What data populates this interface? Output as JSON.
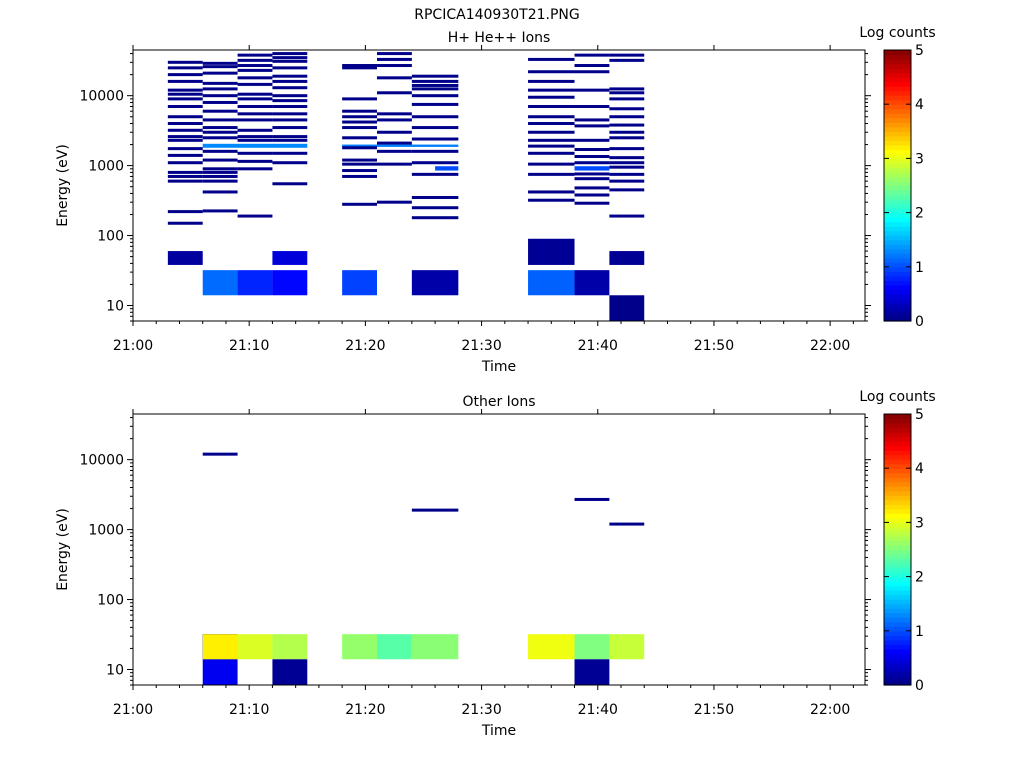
{
  "figure_title": "RPCICA140930T21.PNG",
  "chart_data": [
    {
      "type": "heatmap",
      "title": "H+ He++ Ions",
      "xlabel": "Time",
      "ylabel": "Energy (eV)",
      "y_scale": "log",
      "ylim": [
        6,
        45000
      ],
      "xlim": [
        "21:00",
        "22:03"
      ],
      "x_ticks": [
        "21:00",
        "21:10",
        "21:20",
        "21:30",
        "21:40",
        "21:50",
        "22:00"
      ],
      "y_ticks": [
        "10",
        "100",
        "1000",
        "10000"
      ],
      "colorbar": {
        "label": "Log counts",
        "range": [
          0,
          5
        ],
        "ticks": [
          "0",
          "1",
          "2",
          "3",
          "4",
          "5"
        ],
        "colormap": "jet"
      },
      "cells": [
        {
          "t0": "21:03",
          "t1": "21:06",
          "e0": 38,
          "e1": 60,
          "v": 0.15
        },
        {
          "t0": "21:06",
          "t1": "21:09",
          "e0": 14,
          "e1": 32,
          "v": 1.15
        },
        {
          "t0": "21:09",
          "t1": "21:12",
          "e0": 14,
          "e1": 32,
          "v": 0.8
        },
        {
          "t0": "21:12",
          "t1": "21:15",
          "e0": 14,
          "e1": 32,
          "v": 0.65
        },
        {
          "t0": "21:12",
          "t1": "21:15",
          "e0": 38,
          "e1": 60,
          "v": 0.45
        },
        {
          "t0": "21:18",
          "t1": "21:21",
          "e0": 14,
          "e1": 32,
          "v": 0.95
        },
        {
          "t0": "21:24",
          "t1": "21:28",
          "e0": 14,
          "e1": 32,
          "v": 0.2
        },
        {
          "t0": "21:34",
          "t1": "21:38",
          "e0": 38,
          "e1": 90,
          "v": 0.1
        },
        {
          "t0": "21:34",
          "t1": "21:38",
          "e0": 14,
          "e1": 32,
          "v": 1.1
        },
        {
          "t0": "21:38",
          "t1": "21:41",
          "e0": 14,
          "e1": 32,
          "v": 0.2
        },
        {
          "t0": "21:41",
          "t1": "21:44",
          "e0": 38,
          "e1": 60,
          "v": 0.1
        },
        {
          "t0": "21:41",
          "t1": "21:44",
          "e0": 6,
          "e1": 14,
          "v": 0.05
        },
        {
          "t0": "21:06",
          "t1": "21:15",
          "e0": 1800,
          "e1": 2050,
          "v": 1.3
        },
        {
          "t0": "21:18",
          "t1": "21:28",
          "e0": 1850,
          "e1": 2000,
          "v": 1.25
        },
        {
          "t0": "21:26",
          "t1": "21:28",
          "e0": 850,
          "e1": 980,
          "v": 1.0
        },
        {
          "t0": "21:38",
          "t1": "21:41",
          "e0": 850,
          "e1": 980,
          "v": 1.0
        }
      ],
      "line_groups": [
        {
          "t0": "21:03",
          "t1": "21:06",
          "energies": [
            30000,
            25000,
            20000,
            16000,
            12000,
            10500,
            9000,
            7000,
            5000,
            4000,
            3200,
            2600,
            2300,
            1750,
            1400,
            1100,
            800,
            700,
            600,
            220,
            150
          ]
        },
        {
          "t0": "21:06",
          "t1": "21:09",
          "energies": [
            29000,
            26000,
            21000,
            15000,
            12500,
            10000,
            8000,
            6000,
            4500,
            3500,
            3000,
            2500,
            1600,
            1200,
            900,
            800,
            700,
            600,
            420,
            225
          ]
        },
        {
          "t0": "21:09",
          "t1": "21:12",
          "energies": [
            38000,
            32000,
            27000,
            23000,
            18000,
            14500,
            10500,
            9000,
            7000,
            5500,
            4500,
            3200,
            2600,
            2300,
            1500,
            1150,
            900,
            190
          ]
        },
        {
          "t0": "21:12",
          "t1": "21:15",
          "energies": [
            40000,
            35000,
            31000,
            25000,
            19000,
            16000,
            13000,
            10000,
            8500,
            7000,
            5500,
            4500,
            3500,
            2600,
            2300,
            1500,
            1100,
            550
          ]
        },
        {
          "t0": "21:18",
          "t1": "21:21",
          "energies": [
            27000,
            25000,
            9000,
            6000,
            5000,
            4200,
            3500,
            2500,
            1800,
            1200,
            1050,
            850,
            700,
            280
          ]
        },
        {
          "t0": "21:21",
          "t1": "21:24",
          "energies": [
            40000,
            33000,
            27000,
            18000,
            11000,
            5500,
            4500,
            3000,
            2100,
            1600,
            1050,
            300
          ]
        },
        {
          "t0": "21:24",
          "t1": "21:28",
          "energies": [
            19000,
            16000,
            14000,
            12500,
            10000,
            7500,
            5000,
            3500,
            2400,
            1600,
            1100,
            750,
            350,
            250,
            180
          ]
        },
        {
          "t0": "21:34",
          "t1": "21:38",
          "energies": [
            33000,
            22000,
            16000,
            12000,
            9500,
            7000,
            5000,
            4000,
            3000,
            2300,
            1900,
            1500,
            1050,
            750,
            420,
            320
          ]
        },
        {
          "t0": "21:38",
          "t1": "21:41",
          "energies": [
            38000,
            27000,
            22000,
            12000,
            7000,
            4500,
            3700,
            2300,
            1700,
            1350,
            1100,
            760,
            650,
            480,
            380,
            290
          ]
        },
        {
          "t0": "21:41",
          "t1": "21:44",
          "energies": [
            38000,
            32000,
            12500,
            11000,
            9000,
            6500,
            5000,
            3800,
            3000,
            2500,
            1750,
            1300,
            1100,
            950,
            750,
            600,
            450,
            190
          ]
        }
      ],
      "line_value": 0.05
    },
    {
      "type": "heatmap",
      "title": "Other Ions",
      "xlabel": "Time",
      "ylabel": "Energy (eV)",
      "y_scale": "log",
      "ylim": [
        6,
        45000
      ],
      "xlim": [
        "21:00",
        "22:03"
      ],
      "x_ticks": [
        "21:00",
        "21:10",
        "21:20",
        "21:30",
        "21:40",
        "21:50",
        "22:00"
      ],
      "y_ticks": [
        "10",
        "100",
        "1000",
        "10000"
      ],
      "colorbar": {
        "label": "Log counts",
        "range": [
          0,
          5
        ],
        "ticks": [
          "0",
          "1",
          "2",
          "3",
          "4",
          "5"
        ],
        "colormap": "jet"
      },
      "cells": [
        {
          "t0": "21:06",
          "t1": "21:09",
          "e0": 14,
          "e1": 32,
          "v": 0.35
        },
        {
          "t0": "21:06",
          "t1": "21:09",
          "e0": 14,
          "e1": 32,
          "v": 0.35
        },
        {
          "t0": "21:06",
          "t1": "21:09",
          "e0": 6,
          "e1": 14,
          "v": 0.55
        },
        {
          "t0": "21:06",
          "t1": "21:09",
          "e0": 14,
          "e1": 32,
          "v": 3.2
        },
        {
          "t0": "21:09",
          "t1": "21:12",
          "e0": 14,
          "e1": 32,
          "v": 2.95
        },
        {
          "t0": "21:12",
          "t1": "21:15",
          "e0": 14,
          "e1": 32,
          "v": 2.75
        },
        {
          "t0": "21:12",
          "t1": "21:15",
          "e0": 6,
          "e1": 14,
          "v": 0.1
        },
        {
          "t0": "21:18",
          "t1": "21:21",
          "e0": 14,
          "e1": 32,
          "v": 2.6
        },
        {
          "t0": "21:21",
          "t1": "21:24",
          "e0": 14,
          "e1": 32,
          "v": 2.3
        },
        {
          "t0": "21:24",
          "t1": "21:28",
          "e0": 14,
          "e1": 32,
          "v": 2.55
        },
        {
          "t0": "21:34",
          "t1": "21:38",
          "e0": 14,
          "e1": 32,
          "v": 3.05
        },
        {
          "t0": "21:38",
          "t1": "21:41",
          "e0": 14,
          "e1": 32,
          "v": 2.5
        },
        {
          "t0": "21:38",
          "t1": "21:41",
          "e0": 6,
          "e1": 14,
          "v": 0.1
        },
        {
          "t0": "21:41",
          "t1": "21:44",
          "e0": 14,
          "e1": 32,
          "v": 2.85
        }
      ],
      "line_groups": [
        {
          "t0": "21:06",
          "t1": "21:09",
          "energies": [
            12000
          ]
        },
        {
          "t0": "21:24",
          "t1": "21:28",
          "energies": [
            1900
          ]
        },
        {
          "t0": "21:38",
          "t1": "21:41",
          "energies": [
            2700
          ]
        },
        {
          "t0": "21:41",
          "t1": "21:44",
          "energies": [
            1200
          ]
        }
      ],
      "line_value": 0.05
    }
  ]
}
